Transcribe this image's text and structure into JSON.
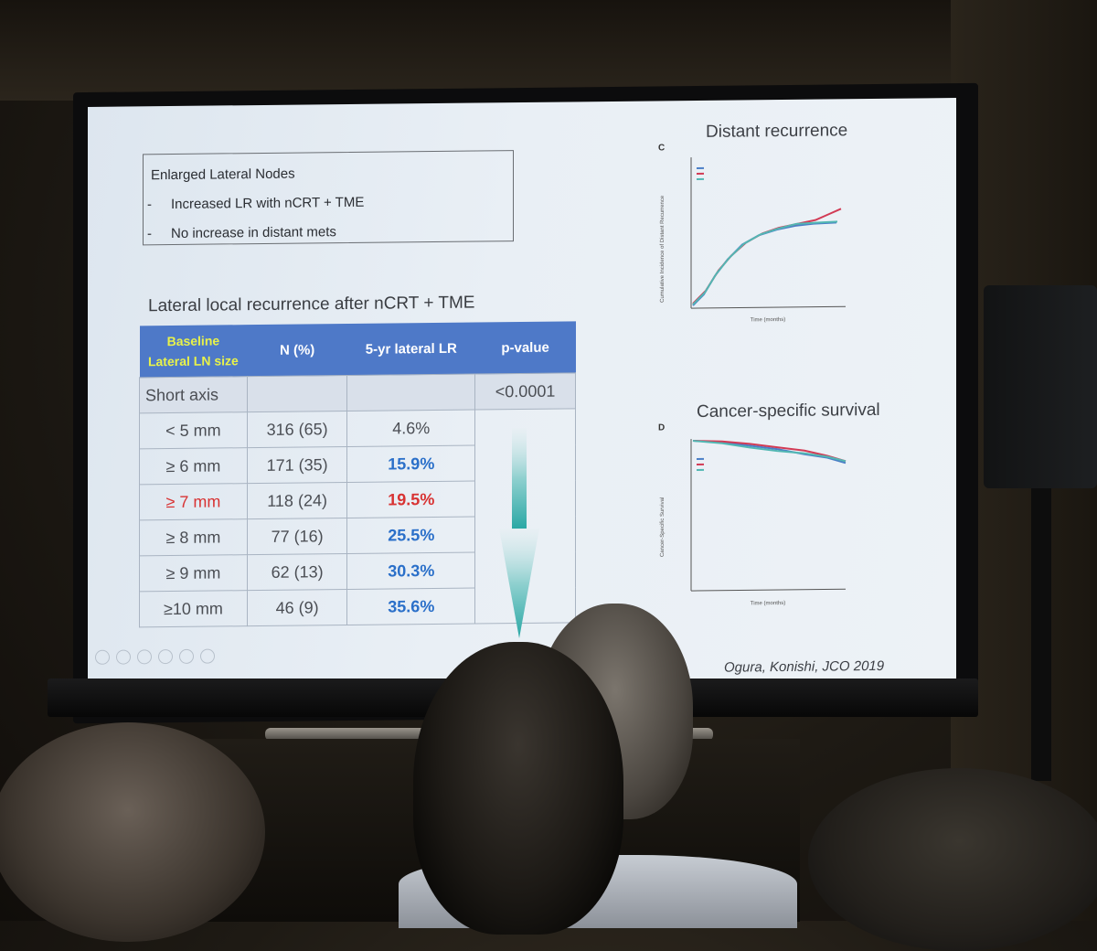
{
  "slide": {
    "box": {
      "heading": "Enlarged Lateral Nodes",
      "bullet_marker": "-",
      "bullets": [
        "Increased LR with nCRT + TME",
        "No increase in distant mets"
      ]
    },
    "subtitle": "Lateral local recurrence after nCRT + TME",
    "table": {
      "headers": {
        "baseline_line1": "Baseline",
        "baseline_line2": "Lateral LN size",
        "n": "N (%)",
        "lr": "5-yr lateral LR",
        "p": "p-value"
      },
      "short_axis": {
        "label": "Short axis",
        "p": "<0.0001"
      },
      "rows": [
        {
          "size": "< 5 mm",
          "n": "316 (65)",
          "lr": "4.6%"
        },
        {
          "size": "≥ 6 mm",
          "n": "171 (35)",
          "lr": "15.9%"
        },
        {
          "size": "≥ 7 mm",
          "n": "118 (24)",
          "lr": "19.5%"
        },
        {
          "size": "≥ 8 mm",
          "n": "77 (16)",
          "lr": "25.5%"
        },
        {
          "size": "≥ 9 mm",
          "n": "62 (13)",
          "lr": "30.3%"
        },
        {
          "size": "≥10 mm",
          "n": "46 (9)",
          "lr": "35.6%"
        }
      ]
    },
    "charts": {
      "top": {
        "title": "Distant recurrence",
        "letter": "C",
        "xlabel": "Time (months)",
        "ylabel": "Cumulative Incidence of Distant Recurrence"
      },
      "bottom": {
        "title": "Cancer-specific survival",
        "letter": "D",
        "xlabel": "Time (months)",
        "ylabel": "Cancer-Specific Survival"
      }
    },
    "citation": "Ogura, Konishi, JCO 2019"
  },
  "colors": {
    "header_blue": "#4e79c8",
    "header_yellow": "#e8f24a",
    "value_blue": "#2a6fc9",
    "value_red": "#d83232",
    "arrow_teal": "#3ab3b0"
  }
}
